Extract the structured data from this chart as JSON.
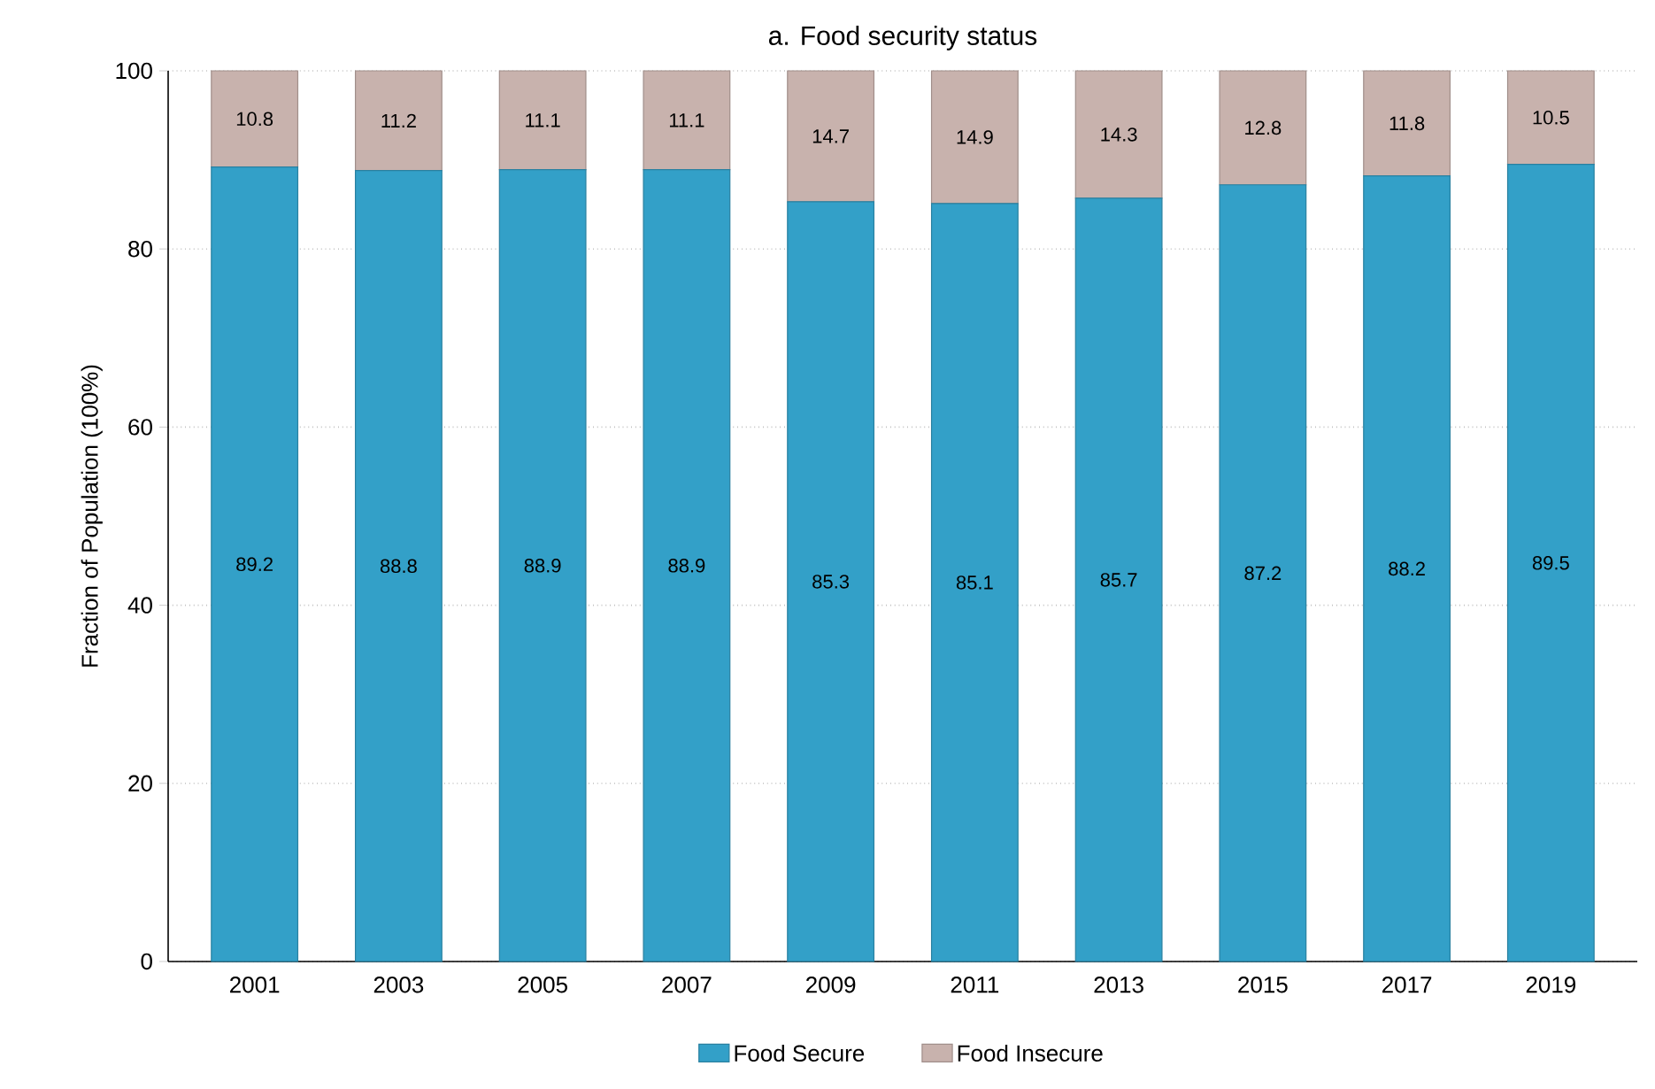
{
  "chart_data": {
    "type": "bar",
    "title": "a. Food security status",
    "ylabel": "Fraction of Population (100%)",
    "categories": [
      "2001",
      "2003",
      "2005",
      "2007",
      "2009",
      "2011",
      "2013",
      "2015",
      "2017",
      "2019"
    ],
    "series": [
      {
        "name": "Food Secure",
        "color": "#33a0c8",
        "values": [
          89.2,
          88.8,
          88.9,
          88.9,
          85.3,
          85.1,
          85.7,
          87.2,
          88.2,
          89.5
        ]
      },
      {
        "name": "Food Insecure",
        "color": "#c8b2ad",
        "values": [
          10.8,
          11.2,
          11.1,
          11.1,
          14.7,
          14.9,
          14.3,
          12.8,
          11.8,
          10.5
        ]
      }
    ],
    "stacked": true,
    "ylim": [
      0,
      100
    ],
    "yticks": [
      0,
      20,
      40,
      60,
      80,
      100
    ],
    "grid": "y",
    "legend": "bottom",
    "data_labels": true
  }
}
